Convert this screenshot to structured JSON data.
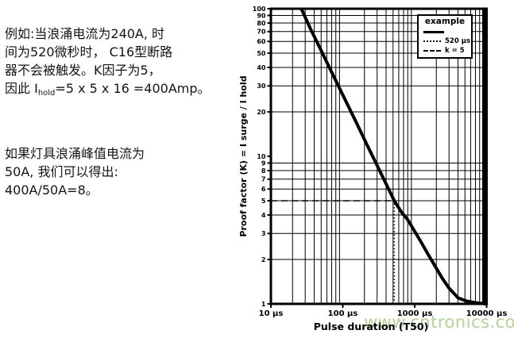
{
  "left_text": {
    "p1_lines": [
      "例如:当浪涌电流为240A, 时",
      "间为520微秒时， C16型断路",
      "器不会被触发。K因子为5，"
    ],
    "p1_line4_prefix": "因此 I",
    "p1_line4_sub": "hold",
    "p1_line4_tail": "=5 x 5 x 16 =400Amp。",
    "p2_lines": [
      "如果灯具浪涌峰值电流为",
      "50A, 我们可以得出:",
      "400A/50A=8。"
    ]
  },
  "chart_data": {
    "type": "line",
    "title": "",
    "xlabel": "Pulse duration (T50)",
    "ylabel": "Proof factor (K) = I surge / I hold",
    "x_scale": "log",
    "y_scale": "log",
    "xlim": [
      10,
      10000
    ],
    "ylim": [
      1,
      100
    ],
    "x_tick_values": [
      10,
      100,
      1000,
      10000
    ],
    "x_tick_labels": [
      "10 µs",
      "100 µs",
      "1000 µs",
      "10000 µs"
    ],
    "y_tick_values": [
      1,
      2,
      3,
      4,
      5,
      6,
      7,
      8,
      9,
      10,
      20,
      30,
      40,
      50,
      60,
      70,
      80,
      90,
      100
    ],
    "grid": "on (log major + minor, both axes)",
    "series": [
      {
        "name": "example",
        "style": "solid-thick",
        "points": [
          [
            26.5,
            100
          ],
          [
            35,
            74.3
          ],
          [
            48,
            54.2
          ],
          [
            65,
            40
          ],
          [
            90,
            28.9
          ],
          [
            120,
            21.7
          ],
          [
            160,
            16.3
          ],
          [
            220,
            11.8
          ],
          [
            300,
            8.67
          ],
          [
            400,
            6.5
          ],
          [
            520,
            5.0
          ],
          [
            650,
            4.2
          ],
          [
            800,
            3.72
          ],
          [
            1000,
            3.1
          ],
          [
            1250,
            2.58
          ],
          [
            1550,
            2.15
          ],
          [
            1900,
            1.82
          ],
          [
            2400,
            1.5
          ],
          [
            3000,
            1.28
          ],
          [
            4000,
            1.1
          ],
          [
            5200,
            1.045
          ],
          [
            6800,
            1.02
          ],
          [
            8800,
            1.005
          ],
          [
            10000,
            1.0
          ]
        ]
      },
      {
        "name": "520 µs",
        "style": "dotted",
        "points": [
          [
            520,
            1
          ],
          [
            520,
            5
          ]
        ]
      },
      {
        "name": "k = 5",
        "style": "dashed",
        "points": [
          [
            10,
            5
          ],
          [
            520,
            5
          ]
        ]
      }
    ],
    "example_point": {
      "pulse_duration_us": 520,
      "k": 5
    },
    "legend": {
      "position": "top-right",
      "title": "example",
      "items": [
        {
          "label": "",
          "style": "solid"
        },
        {
          "label": "520 µs",
          "style": "dotted"
        },
        {
          "label": "k = 5",
          "style": "dashed"
        }
      ]
    }
  },
  "watermark": {
    "text": "www.cntronics.com",
    "color": "#aed193"
  },
  "colors": {
    "curve": "#000000",
    "grid": "#000000",
    "text": "#151515",
    "background": "#ffffff"
  }
}
